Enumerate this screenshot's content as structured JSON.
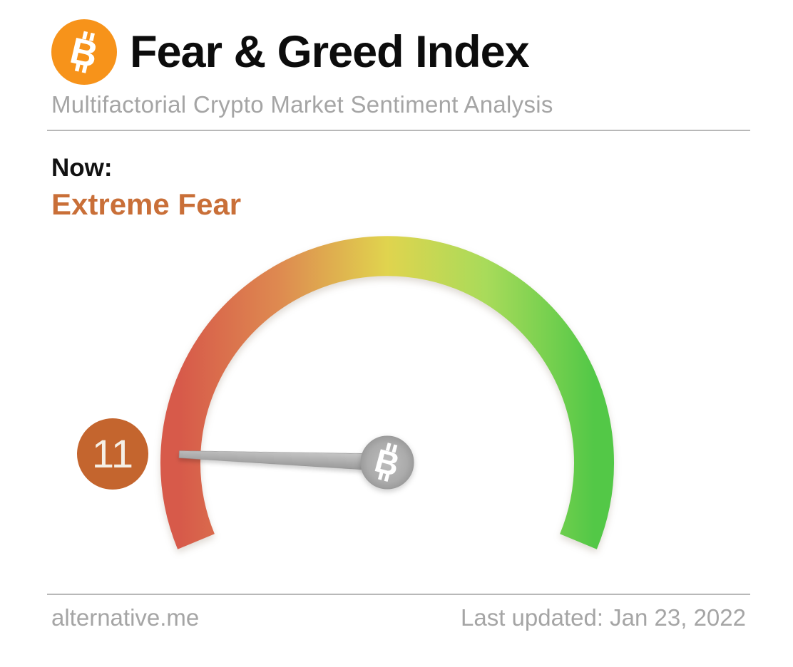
{
  "header": {
    "title": "Fear & Greed Index",
    "subtitle": "Multifactorial Crypto Market Sentiment Analysis",
    "logo_icon": "bitcoin-icon",
    "logo_color": "#F7931A",
    "logo_symbol_color": "#FFFFFF"
  },
  "status": {
    "label": "Now:",
    "value_classification": "Extreme Fear",
    "classification_color": "#C96F38"
  },
  "chart_data": {
    "type": "gauge",
    "title": "Fear & Greed Index",
    "value": 11,
    "range": [
      0,
      100
    ],
    "value_classification": "Extreme Fear",
    "arc_sweep_degrees": 225,
    "arc_gradient_colors": [
      "#D75A4A",
      "#DE8A50",
      "#E0D44E",
      "#A8DB5A",
      "#53C847"
    ],
    "needle_color_top": "#C9C9C9",
    "needle_color_bottom": "#989898",
    "hub_color": "#ABABAB",
    "hub_icon": "bitcoin-icon",
    "badge_color": "#C4652E",
    "badge_text_color": "#F5EFE6"
  },
  "footer": {
    "site": "alternative.me",
    "last_updated": "Last updated: Jan 23, 2022"
  }
}
